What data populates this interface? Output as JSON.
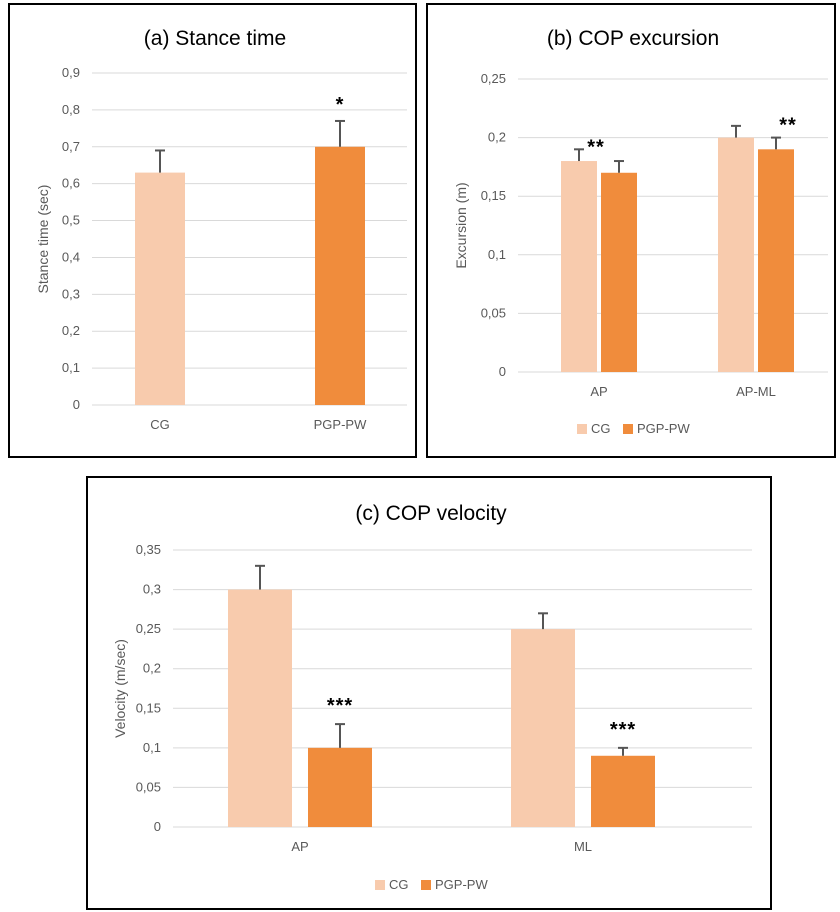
{
  "colors": {
    "cg": "#f8cbad",
    "pgp": "#f08c3c",
    "grid": "#d9d9d9",
    "error_bar": "#555555"
  },
  "chart_data": [
    {
      "id": "a",
      "type": "bar",
      "title": "(a) Stance time",
      "ylabel": "Stance time (sec)",
      "xlabel": "",
      "ylim": [
        0,
        0.9
      ],
      "yticks": [
        "0",
        "0,1",
        "0,2",
        "0,3",
        "0,4",
        "0,5",
        "0,6",
        "0,7",
        "0,8",
        "0,9"
      ],
      "ytick_values": [
        0,
        0.1,
        0.2,
        0.3,
        0.4,
        0.5,
        0.6,
        0.7,
        0.8,
        0.9
      ],
      "grid": true,
      "legend": null,
      "categories": [
        "CG",
        "PGP-PW"
      ],
      "series": [
        {
          "values": [
            0.63,
            0.7
          ],
          "errors": [
            0.06,
            0.07
          ],
          "color_keys": [
            "cg",
            "pgp"
          ],
          "significance": [
            "",
            "*"
          ]
        }
      ]
    },
    {
      "id": "b",
      "type": "bar",
      "title": "(b) COP excursion",
      "ylabel": "Excursion (m)",
      "xlabel": "",
      "ylim": [
        0,
        0.25
      ],
      "yticks": [
        "0",
        "0,05",
        "0,1",
        "0,15",
        "0,2",
        "0,25"
      ],
      "ytick_values": [
        0,
        0.05,
        0.1,
        0.15,
        0.2,
        0.25
      ],
      "grid": true,
      "legend": "bottom",
      "categories": [
        "AP",
        "AP-ML"
      ],
      "series": [
        {
          "name": "CG",
          "color_key": "cg",
          "values": [
            0.18,
            0.2
          ],
          "errors": [
            0.01,
            0.01
          ],
          "significance": [
            "**",
            ""
          ]
        },
        {
          "name": "PGP-PW",
          "color_key": "pgp",
          "values": [
            0.17,
            0.19
          ],
          "errors": [
            0.01,
            0.01
          ],
          "significance": [
            "",
            "**"
          ]
        }
      ]
    },
    {
      "id": "c",
      "type": "bar",
      "title": "(c) COP velocity",
      "ylabel": "Velocity (m/sec)",
      "xlabel": "",
      "ylim": [
        0,
        0.35
      ],
      "yticks": [
        "0",
        "0,05",
        "0,1",
        "0,15",
        "0,2",
        "0,25",
        "0,3",
        "0,35"
      ],
      "ytick_values": [
        0,
        0.05,
        0.1,
        0.15,
        0.2,
        0.25,
        0.3,
        0.35
      ],
      "grid": true,
      "legend": "bottom",
      "categories": [
        "AP",
        "ML"
      ],
      "series": [
        {
          "name": "CG",
          "color_key": "cg",
          "values": [
            0.3,
            0.25
          ],
          "errors": [
            0.03,
            0.02
          ],
          "significance": [
            "",
            ""
          ]
        },
        {
          "name": "PGP-PW",
          "color_key": "pgp",
          "values": [
            0.1,
            0.09
          ],
          "errors": [
            0.03,
            0.01
          ],
          "significance": [
            "***",
            "***"
          ]
        }
      ]
    }
  ]
}
